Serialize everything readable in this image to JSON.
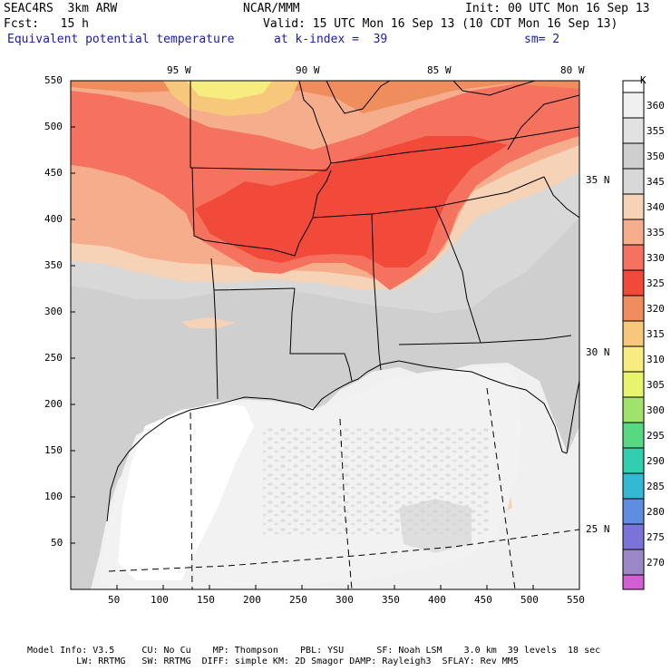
{
  "header": {
    "model": "SEAC4RS  3km ARW",
    "center": "NCAR/MMM",
    "init": "Init: 00 UTC Mon 16 Sep 13",
    "fcst": "Fcst:   15 h",
    "valid": "Valid: 15 UTC Mon 16 Sep 13 (10 CDT Mon 16 Sep 13)",
    "field": "Equivalent potential temperature",
    "level": "at k-index =  39",
    "smooth": "sm= 2"
  },
  "axes": {
    "x_ticks": [
      "50",
      "100",
      "150",
      "200",
      "250",
      "300",
      "350",
      "400",
      "450",
      "500",
      "550"
    ],
    "y_ticks": [
      "50",
      "100",
      "150",
      "200",
      "250",
      "300",
      "350",
      "400",
      "450",
      "500",
      "550"
    ],
    "lon_labels": [
      "95 W",
      "90 W",
      "85 W",
      "80 W"
    ],
    "lat_labels": [
      "35 N",
      "30 N",
      "25 N"
    ]
  },
  "colorbar": {
    "unit": "K",
    "levels": [
      "360",
      "355",
      "350",
      "345",
      "340",
      "335",
      "330",
      "325",
      "320",
      "315",
      "310",
      "305",
      "300",
      "295",
      "290",
      "285",
      "280",
      "275",
      "270"
    ],
    "colors": [
      "#ffffff",
      "#e8e8e8",
      "#d2d2d2",
      "#c2c2c2",
      "#f6d3b6",
      "#f5ad8c",
      "#f5735e",
      "#f24a3a",
      "#ef8d5d",
      "#f7c87b",
      "#f6ec7f",
      "#e6f46e",
      "#9fe36c",
      "#58d882",
      "#30cfaf",
      "#33b9d3",
      "#5e8ee0",
      "#7a73d8",
      "#9b88c6",
      "#d25fd4"
    ]
  },
  "footer": {
    "line1": "Model Info: V3.5     CU: No Cu    MP: Thompson    PBL: YSU      SF: Noah LSM    3.0 km  39 levels  18 sec",
    "line2": "         LW: RRTMG   SW: RRTMG  DIFF: simple KM: 2D Smagor DAMP: Rayleigh3  SFLAY: Rev MM5"
  }
}
